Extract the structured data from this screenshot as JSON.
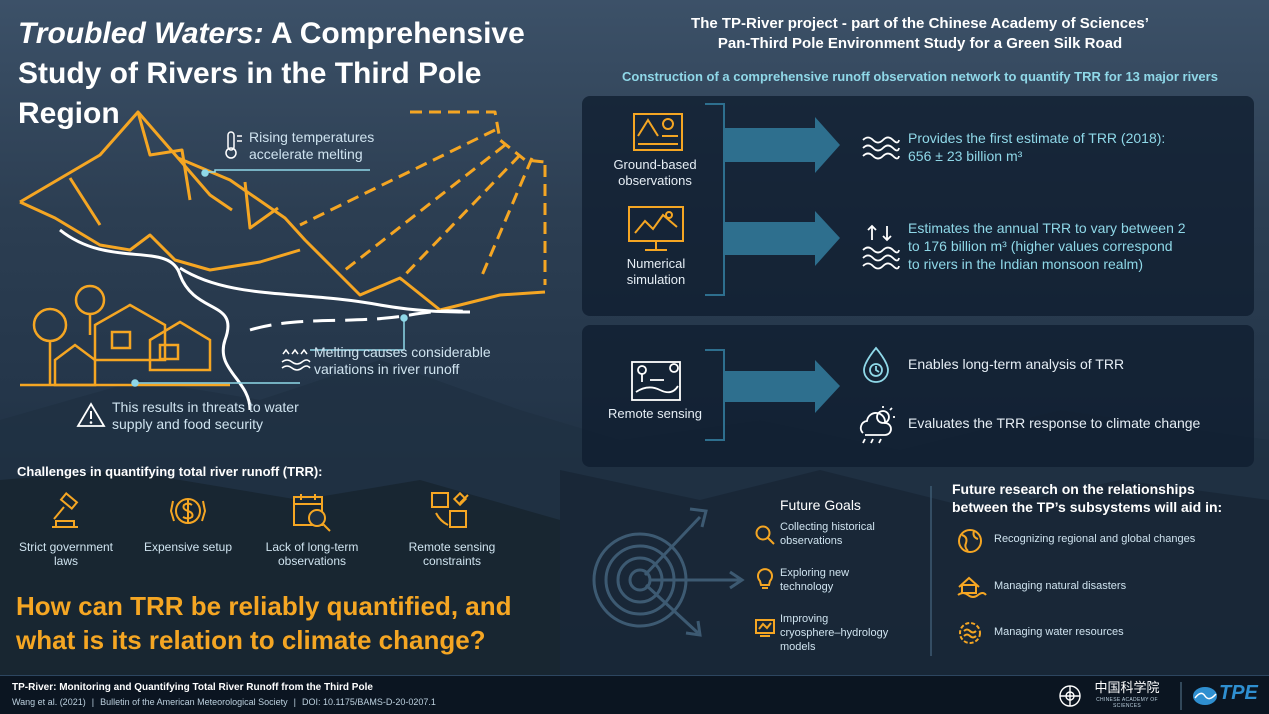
{
  "title": {
    "italic": "Troubled Waters:",
    "rest": " A Comprehensive Study of Rivers in the Third Pole Region"
  },
  "illustration": {
    "rising_temps": "Rising temperatures accelerate melting",
    "melting": "Melting causes considerable variations in river runoff",
    "threats": "This results in threats to water supply and food security"
  },
  "challenges": {
    "heading": "Challenges in quantifying total river runoff (TRR):",
    "items": [
      {
        "label": "Strict government laws",
        "icon": "gavel-icon"
      },
      {
        "label": "Expensive setup",
        "icon": "money-icon"
      },
      {
        "label": "Lack of long-term observations",
        "icon": "calendar-magnifier-icon"
      },
      {
        "label": "Remote sensing constraints",
        "icon": "satellite-icon"
      }
    ]
  },
  "question": "How can TRR be reliably quantified, and what is its relation to climate change?",
  "project": {
    "title_line1": "The TP-River project - part of the Chinese Academy of Sciences’",
    "title_line2": "Pan-Third Pole Environment Study for a Green Silk Road",
    "subtitle": "Construction of a comprehensive runoff observation network to quantify TRR for 13 major rivers"
  },
  "methods": [
    {
      "label": "Ground-based observations",
      "icon": "field-observation-icon"
    },
    {
      "label": "Numerical simulation",
      "icon": "computer-simulation-icon"
    },
    {
      "label": "Remote sensing",
      "icon": "remote-sensing-map-icon"
    }
  ],
  "outcomes": {
    "first_estimate_line1": "Provides the first estimate of TRR (2018):",
    "first_estimate_line2": "656 ± 23 billion m³",
    "annual_line1": "Estimates the annual TRR to vary between 2",
    "annual_line2": "to 176 billion m³ (higher values correspond",
    "annual_line3": "to rivers in the Indian monsoon realm)",
    "long_term": "Enables long-term analysis of TRR",
    "climate": "Evaluates the TRR response to climate change"
  },
  "future_goals": {
    "heading": "Future Goals",
    "items": [
      {
        "line1": "Collecting historical",
        "line2": "observations",
        "icon": "magnifier-icon"
      },
      {
        "line1": "Exploring new",
        "line2": "technology",
        "icon": "lightbulb-icon"
      },
      {
        "line1": "Improving",
        "line2": "cryosphere–hydrology",
        "line3": "models",
        "icon": "model-icon"
      }
    ]
  },
  "future_research": {
    "heading_line1": "Future research on the relationships",
    "heading_line2": "between the TP’s subsystems will aid in:",
    "items": [
      {
        "label": "Recognizing regional and global changes",
        "icon": "globe-icon"
      },
      {
        "label": "Managing natural disasters",
        "icon": "disaster-icon"
      },
      {
        "label": "Managing water resources",
        "icon": "water-gear-icon"
      }
    ]
  },
  "footer": {
    "line1": "TP-River: Monitoring and Quantifying Total River Runoff from the Third Pole",
    "authors": "Wang et al. (2021)",
    "journal": "Bulletin of the American Meteorological Society",
    "doi": "DOI: 10.1175/BAMS-D-20-0207.1",
    "cas_chinese": "中国科学院",
    "cas_english": "CHINESE ACADEMY OF SCIENCES",
    "tpe": "TPE"
  },
  "colors": {
    "orange": "#f5a623",
    "cyan": "#8fd8e8",
    "arrow": "#2e6f8e"
  }
}
